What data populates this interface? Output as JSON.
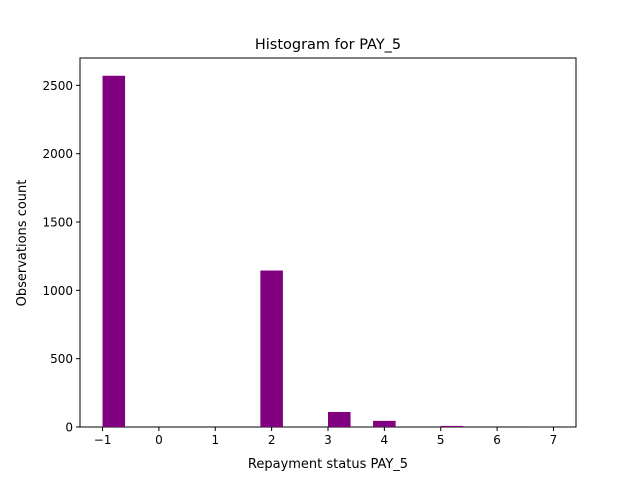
{
  "chart_data": {
    "type": "bar",
    "title": "Histogram for PAY_5",
    "xlabel": "Repayment status PAY_5",
    "ylabel": "Observations count",
    "xlim": [
      -1.4,
      7.4
    ],
    "ylim": [
      0,
      2700
    ],
    "xticks": [
      -1,
      0,
      1,
      2,
      3,
      4,
      5,
      6,
      7
    ],
    "xtick_labels": [
      "−1",
      "0",
      "1",
      "2",
      "3",
      "4",
      "5",
      "6",
      "7"
    ],
    "yticks": [
      0,
      500,
      1000,
      1500,
      2000,
      2500
    ],
    "ytick_labels": [
      "0",
      "500",
      "1000",
      "1500",
      "2000",
      "2500"
    ],
    "bins": [
      {
        "x0": -1.0,
        "x1": -0.6,
        "value": 2570
      },
      {
        "x0": -0.6,
        "x1": -0.2,
        "value": 0
      },
      {
        "x0": -0.2,
        "x1": 0.2,
        "value": 0
      },
      {
        "x0": 0.2,
        "x1": 0.6,
        "value": 0
      },
      {
        "x0": 0.6,
        "x1": 1.0,
        "value": 0
      },
      {
        "x0": 1.0,
        "x1": 1.4,
        "value": 0
      },
      {
        "x0": 1.4,
        "x1": 1.8,
        "value": 0
      },
      {
        "x0": 1.8,
        "x1": 2.2,
        "value": 1145
      },
      {
        "x0": 2.2,
        "x1": 2.6,
        "value": 0
      },
      {
        "x0": 2.6,
        "x1": 3.0,
        "value": 0
      },
      {
        "x0": 3.0,
        "x1": 3.4,
        "value": 110
      },
      {
        "x0": 3.4,
        "x1": 3.8,
        "value": 0
      },
      {
        "x0": 3.8,
        "x1": 4.2,
        "value": 45
      },
      {
        "x0": 4.2,
        "x1": 4.6,
        "value": 0
      },
      {
        "x0": 4.6,
        "x1": 5.0,
        "value": 0
      },
      {
        "x0": 5.0,
        "x1": 5.4,
        "value": 8
      },
      {
        "x0": 5.4,
        "x1": 5.8,
        "value": 0
      },
      {
        "x0": 5.8,
        "x1": 6.2,
        "value": 0
      },
      {
        "x0": 6.2,
        "x1": 6.6,
        "value": 0
      },
      {
        "x0": 6.6,
        "x1": 7.0,
        "value": 1
      }
    ],
    "bar_color": "#800080",
    "grid": false,
    "legend": "none"
  }
}
